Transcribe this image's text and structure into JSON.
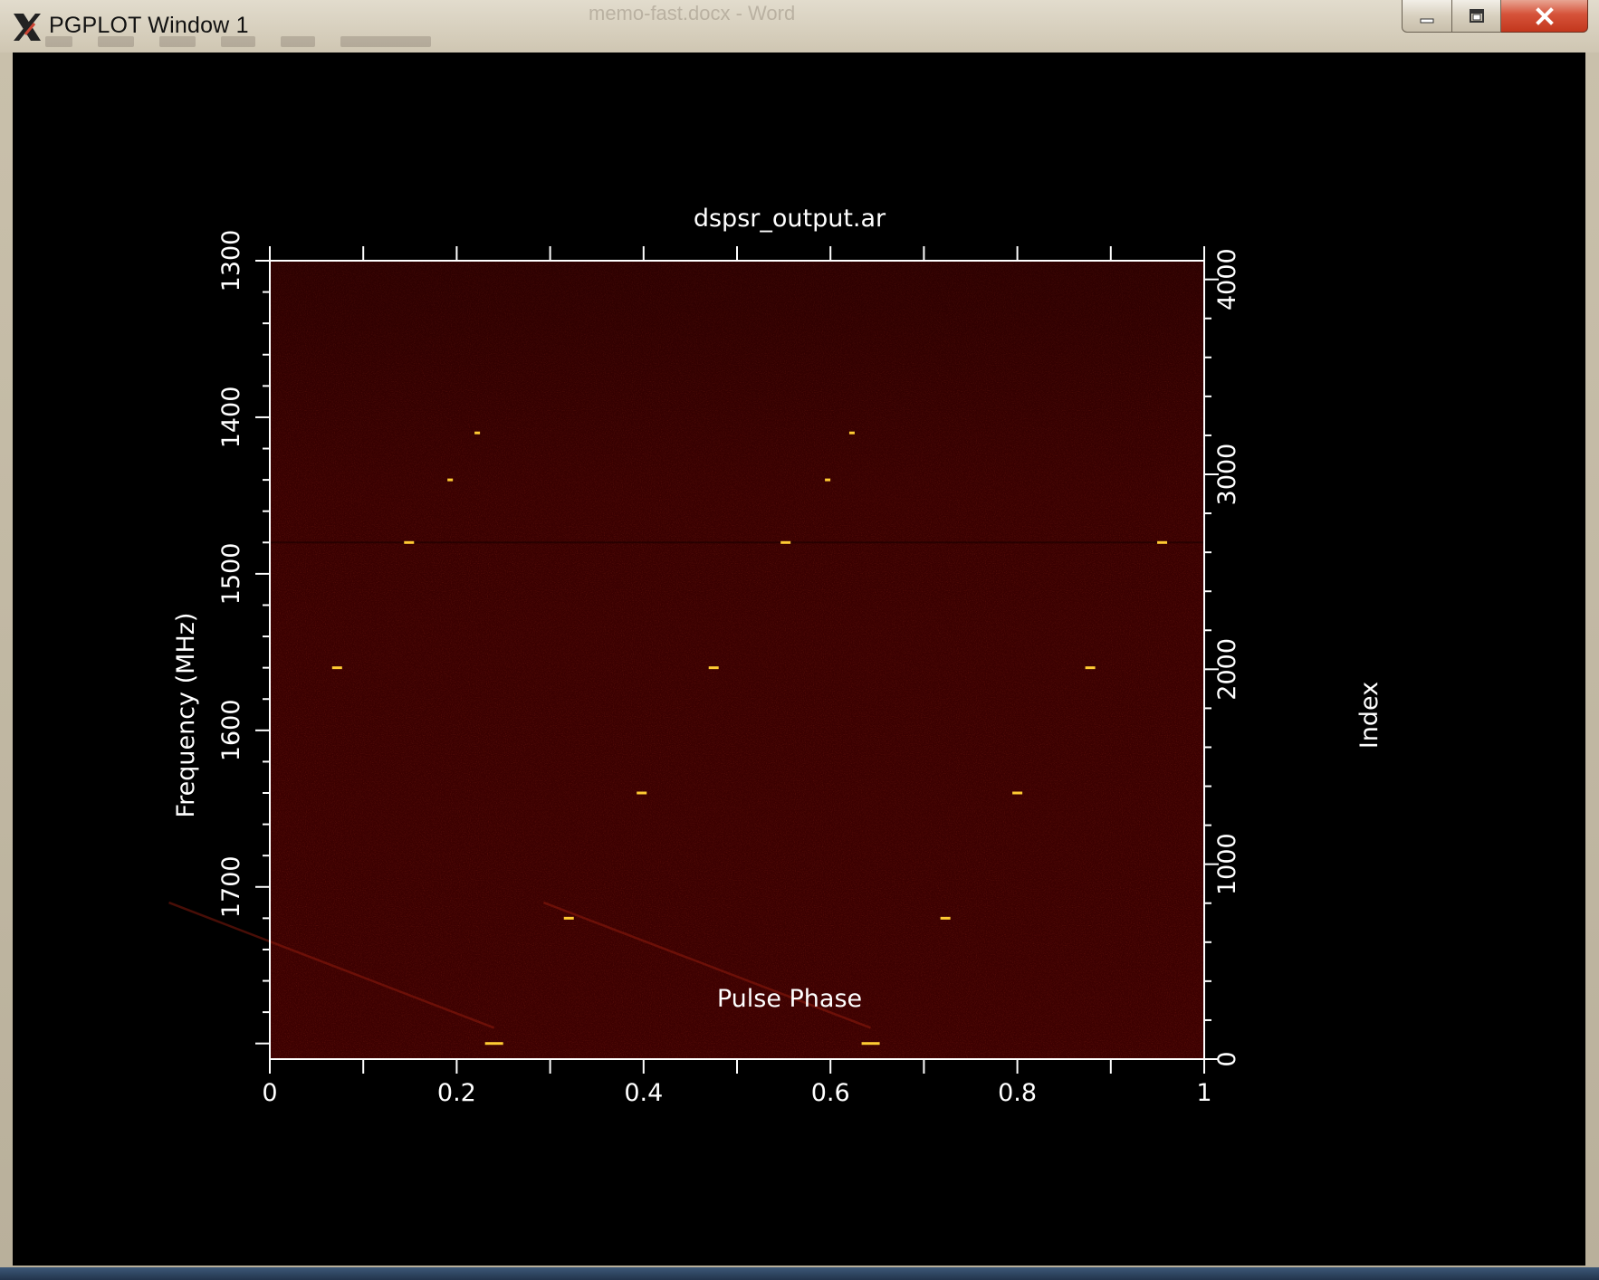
{
  "window": {
    "title": "PGPLOT Window 1",
    "background_title": "memo-fast.docx - Word",
    "controls": {
      "minimize": "minimize",
      "maximize": "maximize",
      "close": "close"
    }
  },
  "colors": {
    "plot_background": "#3d0101",
    "pulse": "#ffcc33",
    "frame": "#ffffff",
    "window_client": "#000000"
  },
  "chart_data": {
    "type": "heatmap",
    "title": "dspsr_output.ar",
    "xlabel": "Pulse Phase",
    "ylabel": "Frequency (MHz)",
    "y2label": "Index",
    "xlim": [
      0,
      1
    ],
    "ylim": [
      1300,
      1810
    ],
    "y_inverted": true,
    "y2lim": [
      0,
      4096
    ],
    "xticks": [
      "0",
      "0.2",
      "0.4",
      "0.6",
      "0.8",
      "1"
    ],
    "xtick_values": [
      0,
      0.2,
      0.4,
      0.6,
      0.8,
      1
    ],
    "yticks": [
      "1300",
      "1400",
      "1500",
      "1600",
      "1700"
    ],
    "ytick_values": [
      1300,
      1400,
      1500,
      1600,
      1700
    ],
    "y2ticks": [
      "0",
      "1000",
      "2000",
      "3000",
      "4000"
    ],
    "y2tick_values": [
      0,
      1000,
      2000,
      3000,
      4000
    ],
    "pulse_period_phase": 0.402,
    "pulse_tracks": [
      {
        "f_top": 1410,
        "phase_top": 0.222,
        "f_bottom": 1790,
        "phase_bottom": 0.24
      },
      {
        "f_top": 1410,
        "phase_top": 0.623,
        "f_bottom": 1790,
        "phase_bottom": 0.643
      }
    ],
    "bright_segments": [
      {
        "phase": 0.222,
        "freq": 1410
      },
      {
        "phase": 0.193,
        "freq": 1440
      },
      {
        "phase": 0.149,
        "freq": 1480
      },
      {
        "phase": 0.072,
        "freq": 1560
      },
      {
        "phase": 0.623,
        "freq": 1410
      },
      {
        "phase": 0.597,
        "freq": 1440
      },
      {
        "phase": 0.552,
        "freq": 1480
      },
      {
        "phase": 0.475,
        "freq": 1560
      },
      {
        "phase": 0.398,
        "freq": 1640
      },
      {
        "phase": 0.32,
        "freq": 1720
      },
      {
        "phase": 0.24,
        "freq": 1800
      },
      {
        "phase": 0.955,
        "freq": 1480
      },
      {
        "phase": 0.878,
        "freq": 1560
      },
      {
        "phase": 0.8,
        "freq": 1640
      },
      {
        "phase": 0.723,
        "freq": 1720
      },
      {
        "phase": 0.643,
        "freq": 1800
      }
    ]
  }
}
